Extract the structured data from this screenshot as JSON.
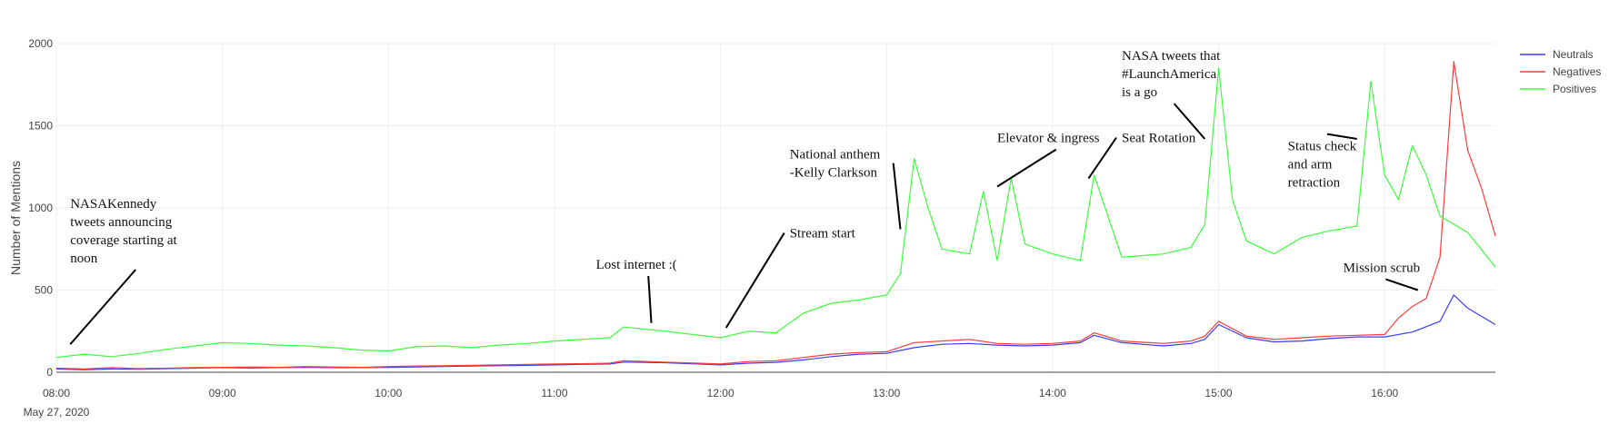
{
  "chart_data": {
    "type": "line",
    "title": "",
    "xlabel": "",
    "ylabel": "Number of Mentions",
    "date_label": "May 27, 2020",
    "x_ticks": [
      "08:00",
      "09:00",
      "10:00",
      "11:00",
      "12:00",
      "13:00",
      "14:00",
      "15:00",
      "16:00"
    ],
    "y_ticks": [
      "0",
      "500",
      "1000",
      "1500",
      "2000"
    ],
    "xlim": [
      "08:00",
      "16:40"
    ],
    "ylim": [
      0,
      2000
    ],
    "grid": true,
    "legend_position": "top-right",
    "series": [
      {
        "name": "Neutrals",
        "color": "#3b3bff",
        "points": [
          [
            "08:00",
            20
          ],
          [
            "08:10",
            15
          ],
          [
            "08:20",
            20
          ],
          [
            "08:30",
            18
          ],
          [
            "08:40",
            22
          ],
          [
            "08:50",
            25
          ],
          [
            "09:00",
            28
          ],
          [
            "09:10",
            26
          ],
          [
            "09:20",
            28
          ],
          [
            "09:30",
            30
          ],
          [
            "09:40",
            28
          ],
          [
            "09:50",
            28
          ],
          [
            "10:00",
            30
          ],
          [
            "10:10",
            32
          ],
          [
            "10:20",
            35
          ],
          [
            "10:30",
            38
          ],
          [
            "10:40",
            40
          ],
          [
            "10:50",
            42
          ],
          [
            "11:00",
            45
          ],
          [
            "11:10",
            48
          ],
          [
            "11:20",
            50
          ],
          [
            "11:25",
            62
          ],
          [
            "11:40",
            58
          ],
          [
            "12:00",
            45
          ],
          [
            "12:10",
            55
          ],
          [
            "12:20",
            60
          ],
          [
            "12:30",
            75
          ],
          [
            "12:40",
            95
          ],
          [
            "12:50",
            110
          ],
          [
            "13:00",
            115
          ],
          [
            "13:10",
            150
          ],
          [
            "13:20",
            170
          ],
          [
            "13:30",
            175
          ],
          [
            "13:40",
            165
          ],
          [
            "13:50",
            160
          ],
          [
            "14:00",
            165
          ],
          [
            "14:10",
            180
          ],
          [
            "14:15",
            225
          ],
          [
            "14:25",
            180
          ],
          [
            "14:40",
            160
          ],
          [
            "14:50",
            175
          ],
          [
            "14:55",
            200
          ],
          [
            "15:00",
            290
          ],
          [
            "15:10",
            210
          ],
          [
            "15:20",
            185
          ],
          [
            "15:30",
            190
          ],
          [
            "15:40",
            205
          ],
          [
            "15:50",
            215
          ],
          [
            "16:00",
            215
          ],
          [
            "16:10",
            245
          ],
          [
            "16:20",
            310
          ],
          [
            "16:25",
            470
          ],
          [
            "16:30",
            390
          ],
          [
            "16:40",
            290
          ]
        ]
      },
      {
        "name": "Negatives",
        "color": "#ff3b3b",
        "points": [
          [
            "08:00",
            25
          ],
          [
            "08:10",
            20
          ],
          [
            "08:20",
            28
          ],
          [
            "08:30",
            22
          ],
          [
            "08:40",
            25
          ],
          [
            "08:50",
            28
          ],
          [
            "09:00",
            30
          ],
          [
            "09:10",
            32
          ],
          [
            "09:20",
            30
          ],
          [
            "09:30",
            35
          ],
          [
            "09:40",
            32
          ],
          [
            "09:50",
            30
          ],
          [
            "10:00",
            35
          ],
          [
            "10:10",
            38
          ],
          [
            "10:20",
            40
          ],
          [
            "10:30",
            42
          ],
          [
            "10:40",
            45
          ],
          [
            "10:50",
            48
          ],
          [
            "11:00",
            50
          ],
          [
            "11:10",
            52
          ],
          [
            "11:20",
            55
          ],
          [
            "11:25",
            70
          ],
          [
            "11:40",
            62
          ],
          [
            "12:00",
            50
          ],
          [
            "12:10",
            65
          ],
          [
            "12:20",
            70
          ],
          [
            "12:30",
            90
          ],
          [
            "12:40",
            110
          ],
          [
            "12:50",
            120
          ],
          [
            "13:00",
            125
          ],
          [
            "13:10",
            180
          ],
          [
            "13:20",
            190
          ],
          [
            "13:30",
            200
          ],
          [
            "13:40",
            175
          ],
          [
            "13:50",
            170
          ],
          [
            "14:00",
            175
          ],
          [
            "14:10",
            190
          ],
          [
            "14:15",
            240
          ],
          [
            "14:25",
            190
          ],
          [
            "14:40",
            175
          ],
          [
            "14:50",
            190
          ],
          [
            "14:55",
            220
          ],
          [
            "15:00",
            310
          ],
          [
            "15:10",
            220
          ],
          [
            "15:20",
            200
          ],
          [
            "15:30",
            210
          ],
          [
            "15:40",
            220
          ],
          [
            "15:50",
            225
          ],
          [
            "16:00",
            230
          ],
          [
            "16:05",
            330
          ],
          [
            "16:10",
            400
          ],
          [
            "16:15",
            450
          ],
          [
            "16:20",
            700
          ],
          [
            "16:25",
            1890
          ],
          [
            "16:30",
            1350
          ],
          [
            "16:35",
            1120
          ],
          [
            "16:40",
            830
          ]
        ]
      },
      {
        "name": "Positives",
        "color": "#3bff3b",
        "points": [
          [
            "08:00",
            90
          ],
          [
            "08:10",
            110
          ],
          [
            "08:20",
            95
          ],
          [
            "08:30",
            115
          ],
          [
            "08:40",
            140
          ],
          [
            "08:50",
            160
          ],
          [
            "09:00",
            180
          ],
          [
            "09:10",
            175
          ],
          [
            "09:20",
            165
          ],
          [
            "09:30",
            160
          ],
          [
            "09:40",
            150
          ],
          [
            "09:50",
            135
          ],
          [
            "10:00",
            130
          ],
          [
            "10:10",
            155
          ],
          [
            "10:20",
            160
          ],
          [
            "10:30",
            150
          ],
          [
            "10:40",
            165
          ],
          [
            "10:50",
            175
          ],
          [
            "11:00",
            190
          ],
          [
            "11:10",
            200
          ],
          [
            "11:20",
            210
          ],
          [
            "11:25",
            275
          ],
          [
            "11:40",
            250
          ],
          [
            "12:00",
            210
          ],
          [
            "12:10",
            250
          ],
          [
            "12:20",
            240
          ],
          [
            "12:30",
            360
          ],
          [
            "12:40",
            420
          ],
          [
            "12:50",
            440
          ],
          [
            "13:00",
            470
          ],
          [
            "13:05",
            600
          ],
          [
            "13:10",
            1300
          ],
          [
            "13:15",
            1000
          ],
          [
            "13:20",
            750
          ],
          [
            "13:30",
            720
          ],
          [
            "13:35",
            1100
          ],
          [
            "13:40",
            680
          ],
          [
            "13:45",
            1180
          ],
          [
            "13:50",
            780
          ],
          [
            "14:00",
            720
          ],
          [
            "14:10",
            680
          ],
          [
            "14:15",
            1200
          ],
          [
            "14:25",
            700
          ],
          [
            "14:40",
            720
          ],
          [
            "14:50",
            760
          ],
          [
            "14:55",
            900
          ],
          [
            "15:00",
            1850
          ],
          [
            "15:05",
            1050
          ],
          [
            "15:10",
            800
          ],
          [
            "15:20",
            720
          ],
          [
            "15:30",
            820
          ],
          [
            "15:40",
            860
          ],
          [
            "15:50",
            890
          ],
          [
            "15:55",
            1770
          ],
          [
            "16:00",
            1200
          ],
          [
            "16:05",
            1050
          ],
          [
            "16:10",
            1380
          ],
          [
            "16:15",
            1200
          ],
          [
            "16:20",
            950
          ],
          [
            "16:30",
            850
          ],
          [
            "16:40",
            640
          ]
        ]
      }
    ],
    "annotations": [
      {
        "lines": [
          "NASAKennedy",
          "tweets announcing",
          "coverage starting at",
          "noon"
        ],
        "target": [
          "08:05",
          170
        ],
        "text_at": [
          "08:05",
          1000
        ]
      },
      {
        "lines": [
          "Lost internet :("
        ],
        "target": [
          "11:35",
          300
        ],
        "text_at": [
          "11:15",
          630
        ]
      },
      {
        "lines": [
          "Stream start"
        ],
        "target": [
          "12:02",
          270
        ],
        "text_at": [
          "12:25",
          820
        ]
      },
      {
        "lines": [
          "National anthem",
          "-Kelly Clarkson"
        ],
        "target": [
          "13:05",
          870
        ],
        "text_at": [
          "12:25",
          1300
        ]
      },
      {
        "lines": [
          "Elevator & ingress"
        ],
        "target": [
          "13:40",
          1130
        ],
        "text_at": [
          "13:40",
          1400
        ]
      },
      {
        "lines": [
          "Seat Rotation"
        ],
        "target": [
          "14:13",
          1180
        ],
        "text_at": [
          "14:25",
          1400
        ]
      },
      {
        "lines": [
          "NASA tweets that",
          "#LaunchAmerica",
          "is a go"
        ],
        "target": [
          "14:55",
          1420
        ],
        "text_at": [
          "14:25",
          1900
        ]
      },
      {
        "lines": [
          "Status check",
          "and arm",
          "retraction"
        ],
        "target": [
          "15:50",
          1420
        ],
        "text_at": [
          "15:25",
          1350
        ]
      },
      {
        "lines": [
          "Mission scrub"
        ],
        "target": [
          "16:12",
          500
        ],
        "text_at": [
          "15:45",
          610
        ]
      }
    ]
  }
}
